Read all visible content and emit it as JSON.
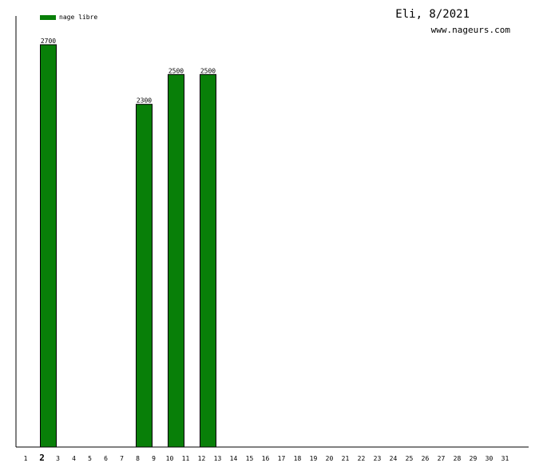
{
  "header": {
    "title": "Eli, 8/2021",
    "site": "www.nageurs.com"
  },
  "legend": {
    "label": "nage libre",
    "color": "#087f08"
  },
  "chart_data": {
    "type": "bar",
    "title": "Eli, 8/2021",
    "xlabel": "",
    "ylabel": "",
    "categories": [
      "1",
      "2",
      "3",
      "4",
      "5",
      "6",
      "7",
      "8",
      "9",
      "10",
      "11",
      "12",
      "13",
      "14",
      "15",
      "16",
      "17",
      "18",
      "19",
      "20",
      "21",
      "22",
      "23",
      "24",
      "25",
      "26",
      "27",
      "28",
      "29",
      "30",
      "31"
    ],
    "highlighted_category": "2",
    "series": [
      {
        "name": "nage libre",
        "color": "#087f08",
        "values": [
          0,
          2700,
          0,
          0,
          0,
          0,
          0,
          2300,
          0,
          2500,
          0,
          2500,
          0,
          0,
          0,
          0,
          0,
          0,
          0,
          0,
          0,
          0,
          0,
          0,
          0,
          0,
          0,
          0,
          0,
          0,
          0
        ]
      }
    ],
    "ylim": [
      0,
      3000
    ],
    "grid": false,
    "legend_position": "top-left"
  }
}
